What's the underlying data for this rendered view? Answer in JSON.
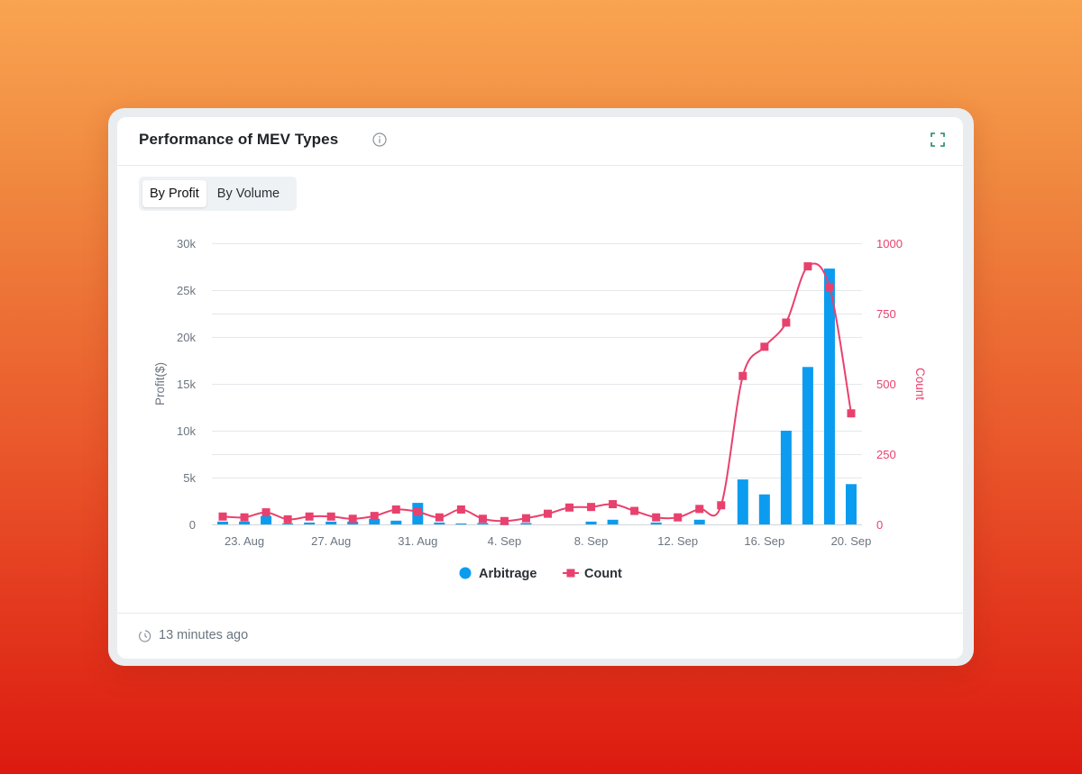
{
  "card": {
    "title": "Performance of MEV Types",
    "info_icon": "info-circle-icon",
    "expand_icon": "expand-icon"
  },
  "toggle": {
    "options": [
      "By Profit",
      "By Volume"
    ],
    "selected": "By Profit"
  },
  "footer": {
    "clock_icon": "clock-icon",
    "updated": "13 minutes ago"
  },
  "colors": {
    "arbitrage": "#0b9cf0",
    "count": "#e8416d",
    "grid": "#e4e7ea",
    "axis_text": "#6b7580"
  },
  "chart_data": {
    "type": "bar",
    "title": "",
    "x": [
      "22. Aug",
      "23. Aug",
      "24. Aug",
      "25. Aug",
      "26. Aug",
      "27. Aug",
      "28. Aug",
      "29. Aug",
      "30. Aug",
      "31. Aug",
      "1. Sep",
      "2. Sep",
      "3. Sep",
      "4. Sep",
      "5. Sep",
      "6. Sep",
      "7. Sep",
      "8. Sep",
      "9. Sep",
      "10. Sep",
      "11. Sep",
      "12. Sep",
      "13. Sep",
      "14. Sep",
      "15. Sep",
      "16. Sep",
      "17. Sep",
      "18. Sep",
      "19. Sep",
      "20. Sep"
    ],
    "x_tick_labels": [
      "23. Aug",
      "27. Aug",
      "31. Aug",
      "4. Sep",
      "8. Sep",
      "12. Sep",
      "16. Sep",
      "20. Sep"
    ],
    "ylabel": "Profit($)",
    "y2label": "Count",
    "ylim": [
      0,
      30000
    ],
    "y2lim": [
      0,
      1000
    ],
    "y_ticks": [
      "0",
      "5k",
      "10k",
      "15k",
      "20k",
      "25k",
      "30k"
    ],
    "y2_ticks": [
      "0",
      "250",
      "500",
      "750",
      "1000"
    ],
    "grid": true,
    "legend": "bottom-center",
    "series": [
      {
        "name": "Arbitrage",
        "type": "bar",
        "axis": "left",
        "values": [
          300,
          300,
          900,
          100,
          200,
          300,
          300,
          600,
          400,
          2300,
          200,
          100,
          150,
          50,
          150,
          0,
          0,
          300,
          500,
          0,
          200,
          0,
          500,
          0,
          4800,
          3200,
          10000,
          16800,
          27300,
          4300
        ]
      },
      {
        "name": "Count",
        "type": "line",
        "axis": "right",
        "values": [
          28,
          25,
          43,
          18,
          28,
          28,
          20,
          30,
          53,
          45,
          25,
          53,
          20,
          12,
          22,
          38,
          60,
          62,
          72,
          48,
          25,
          25,
          55,
          68,
          528,
          632,
          718,
          918,
          845,
          395
        ]
      }
    ]
  }
}
